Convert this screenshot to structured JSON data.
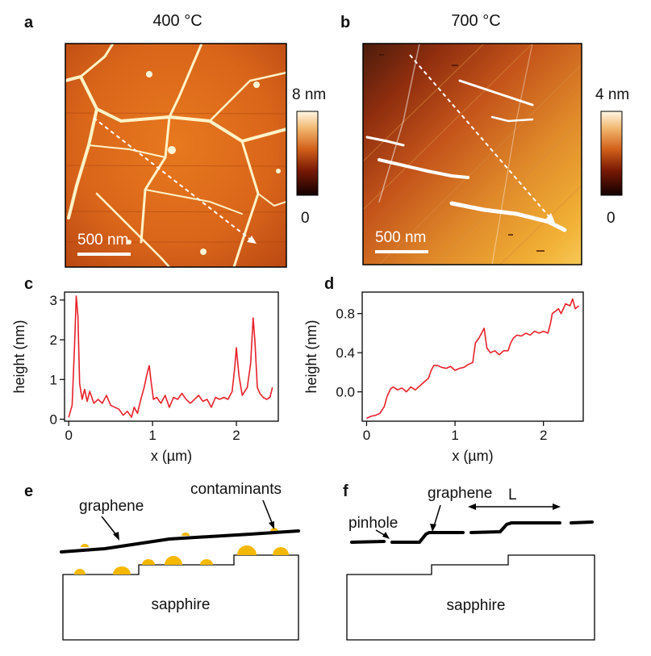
{
  "panels": {
    "a": {
      "label": "a",
      "title": "400 °C",
      "scalebar": "500 nm",
      "colorbar_max": "8 nm",
      "colorbar_min": "0"
    },
    "b": {
      "label": "b",
      "title": "700 °C",
      "scalebar": "500 nm",
      "colorbar_max": "4 nm",
      "colorbar_min": "0"
    },
    "c": {
      "label": "c"
    },
    "d": {
      "label": "d"
    },
    "e": {
      "label": "e",
      "graphene": "graphene",
      "contaminants": "contaminants",
      "substrate": "sapphire"
    },
    "f": {
      "label": "f",
      "graphene": "graphene",
      "pinhole": "pinhole",
      "L": "L",
      "substrate": "sapphire"
    }
  },
  "colors": {
    "profile_line": "#e8202a",
    "contaminant": "#f5b800",
    "afm_dark": "#2a0a00",
    "afm_mid": "#d05a10",
    "afm_bright": "#fff6d0"
  },
  "chart_data": [
    {
      "type": "line",
      "panel": "c",
      "xlabel": "x (µm)",
      "ylabel": "height (nm)",
      "xlim": [
        -0.05,
        2.5
      ],
      "ylim": [
        -0.05,
        3.2
      ],
      "xticks": [
        0,
        1,
        2
      ],
      "yticks": [
        0,
        1,
        2,
        3
      ],
      "series": [
        {
          "x": [
            0,
            0.04,
            0.07,
            0.09,
            0.11,
            0.13,
            0.16,
            0.19,
            0.22,
            0.25,
            0.3,
            0.35,
            0.4,
            0.45,
            0.5,
            0.55,
            0.6,
            0.65,
            0.7,
            0.75,
            0.78,
            0.82,
            0.86,
            0.9,
            0.93,
            0.96,
            0.98,
            1.01,
            1.05,
            1.1,
            1.15,
            1.2,
            1.25,
            1.3,
            1.35,
            1.4,
            1.45,
            1.5,
            1.55,
            1.6,
            1.65,
            1.7,
            1.75,
            1.8,
            1.85,
            1.9,
            1.95,
            1.98,
            2.0,
            2.03,
            2.07,
            2.1,
            2.13,
            2.17,
            2.2,
            2.22,
            2.25,
            2.28,
            2.32,
            2.36,
            2.4,
            2.43
          ],
          "y": [
            0.05,
            0.35,
            1.9,
            3.1,
            2.6,
            0.9,
            0.5,
            0.75,
            0.45,
            0.7,
            0.4,
            0.5,
            0.4,
            0.6,
            0.35,
            0.3,
            0.25,
            0.1,
            0.2,
            0.05,
            0.3,
            0.15,
            0.5,
            0.8,
            1.1,
            1.35,
            1.0,
            0.5,
            0.55,
            0.4,
            0.6,
            0.3,
            0.55,
            0.5,
            0.65,
            0.5,
            0.4,
            0.5,
            0.6,
            0.45,
            0.5,
            0.3,
            0.55,
            0.5,
            0.55,
            0.5,
            0.7,
            1.3,
            1.8,
            1.1,
            0.6,
            0.7,
            0.8,
            1.4,
            2.55,
            2.0,
            0.8,
            0.65,
            0.55,
            0.5,
            0.55,
            0.8
          ]
        }
      ]
    },
    {
      "type": "line",
      "panel": "d",
      "xlabel": "x (µm)",
      "ylabel": "height (nm)",
      "xlim": [
        -0.05,
        2.45
      ],
      "ylim": [
        -0.3,
        1.02
      ],
      "xticks": [
        0,
        1,
        2
      ],
      "yticks": [
        0.0,
        0.4,
        0.8
      ],
      "ytick_labels": [
        "0.0",
        "0.4",
        "0.8"
      ],
      "series": [
        {
          "x": [
            0,
            0.05,
            0.1,
            0.15,
            0.2,
            0.23,
            0.27,
            0.3,
            0.35,
            0.4,
            0.45,
            0.5,
            0.55,
            0.6,
            0.65,
            0.7,
            0.73,
            0.76,
            0.8,
            0.85,
            0.9,
            0.95,
            1.0,
            1.05,
            1.1,
            1.15,
            1.2,
            1.23,
            1.27,
            1.3,
            1.33,
            1.36,
            1.4,
            1.45,
            1.5,
            1.55,
            1.6,
            1.63,
            1.66,
            1.7,
            1.75,
            1.8,
            1.85,
            1.9,
            1.95,
            2.0,
            2.05,
            2.08,
            2.1,
            2.13,
            2.17,
            2.2,
            2.25,
            2.3,
            2.33,
            2.36,
            2.4
          ],
          "y": [
            -0.27,
            -0.25,
            -0.24,
            -0.22,
            -0.15,
            -0.05,
            0.03,
            0.05,
            0.02,
            0.04,
            0.0,
            0.05,
            0.02,
            0.06,
            0.1,
            0.14,
            0.22,
            0.27,
            0.27,
            0.25,
            0.24,
            0.26,
            0.22,
            0.24,
            0.25,
            0.28,
            0.3,
            0.5,
            0.55,
            0.6,
            0.65,
            0.45,
            0.4,
            0.42,
            0.38,
            0.42,
            0.42,
            0.5,
            0.55,
            0.58,
            0.57,
            0.6,
            0.58,
            0.62,
            0.6,
            0.62,
            0.6,
            0.7,
            0.8,
            0.82,
            0.85,
            0.8,
            0.9,
            0.88,
            0.95,
            0.85,
            0.88
          ]
        }
      ]
    }
  ]
}
